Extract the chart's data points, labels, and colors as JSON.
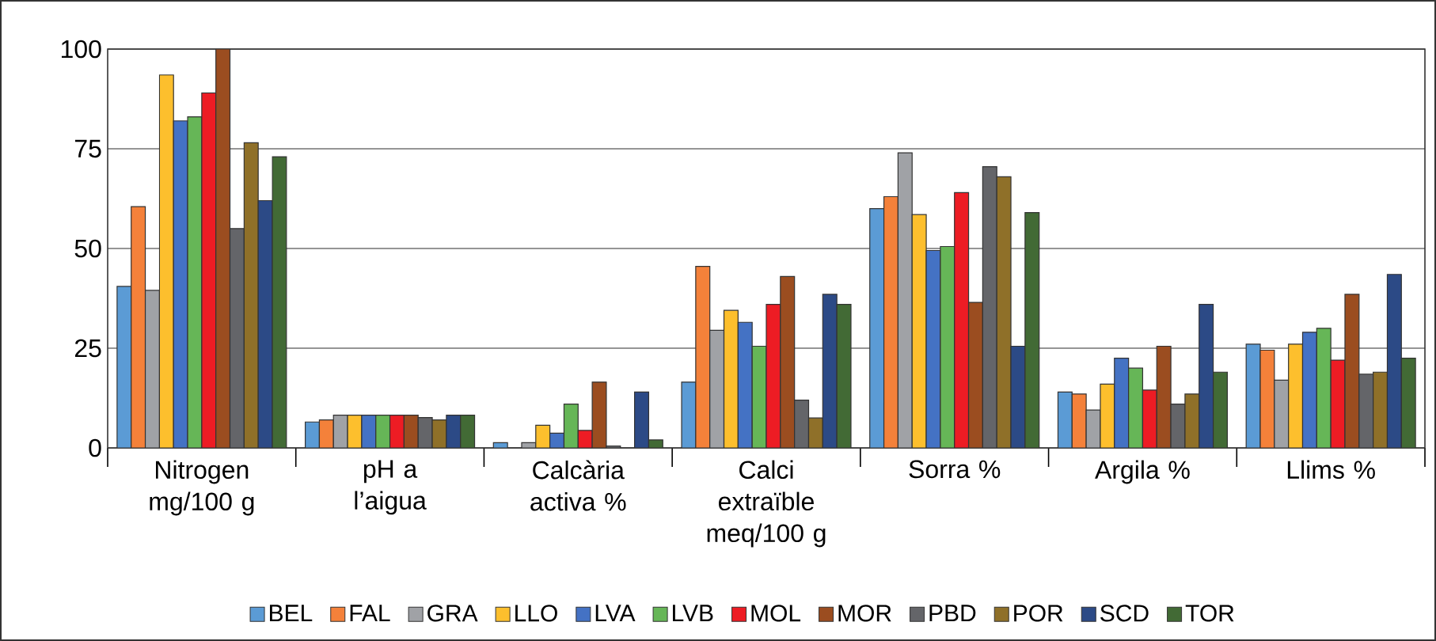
{
  "chart_data": {
    "type": "bar",
    "categories": [
      "Nitrogen mg/100 g",
      "pH a l’aigua",
      "Calcària activa %",
      "Calci extraïble meq/100 g",
      "Sorra %",
      "Argila %",
      "Llims %"
    ],
    "series": [
      {
        "name": "BEL",
        "color": "#5b9bd5",
        "values": [
          40.5,
          6.5,
          1.3,
          16.5,
          60,
          14,
          26
        ]
      },
      {
        "name": "FAL",
        "color": "#f4813a",
        "values": [
          60.5,
          7,
          0,
          45.5,
          63,
          13.5,
          24.5
        ]
      },
      {
        "name": "GRA",
        "color": "#a0a2a6",
        "values": [
          39.5,
          8.2,
          1.3,
          29.5,
          74,
          9.5,
          17
        ]
      },
      {
        "name": "LLO",
        "color": "#fdbf2d",
        "values": [
          93.5,
          8.2,
          5.7,
          34.5,
          58.5,
          16,
          26
        ]
      },
      {
        "name": "LVA",
        "color": "#4472c4",
        "values": [
          82,
          8.2,
          3.7,
          31.5,
          49.5,
          22.5,
          29
        ]
      },
      {
        "name": "LVB",
        "color": "#66b657",
        "values": [
          83,
          8.2,
          11,
          25.5,
          50.5,
          20,
          30
        ]
      },
      {
        "name": "MOL",
        "color": "#ed1c24",
        "values": [
          89,
          8.2,
          4.4,
          36,
          64,
          14.5,
          22
        ]
      },
      {
        "name": "MOR",
        "color": "#9b4d20",
        "values": [
          100,
          8.2,
          16.5,
          43,
          36.5,
          25.5,
          38.5
        ]
      },
      {
        "name": "PBD",
        "color": "#646569",
        "values": [
          55,
          7.6,
          0.5,
          12,
          70.5,
          11,
          18.5
        ]
      },
      {
        "name": "POR",
        "color": "#8f7029",
        "values": [
          76.5,
          7,
          0,
          7.5,
          68,
          13.5,
          19
        ]
      },
      {
        "name": "SCD",
        "color": "#2c4a86",
        "values": [
          62,
          8.2,
          14,
          38.5,
          25.5,
          36,
          43.5
        ]
      },
      {
        "name": "TOR",
        "color": "#426a35",
        "values": [
          73,
          8.2,
          2,
          36,
          59,
          19,
          22.5
        ]
      }
    ],
    "ylim": [
      0,
      100
    ],
    "yticks": [
      0,
      25,
      50,
      75,
      100
    ],
    "grid": "y",
    "legend": "bottom"
  }
}
